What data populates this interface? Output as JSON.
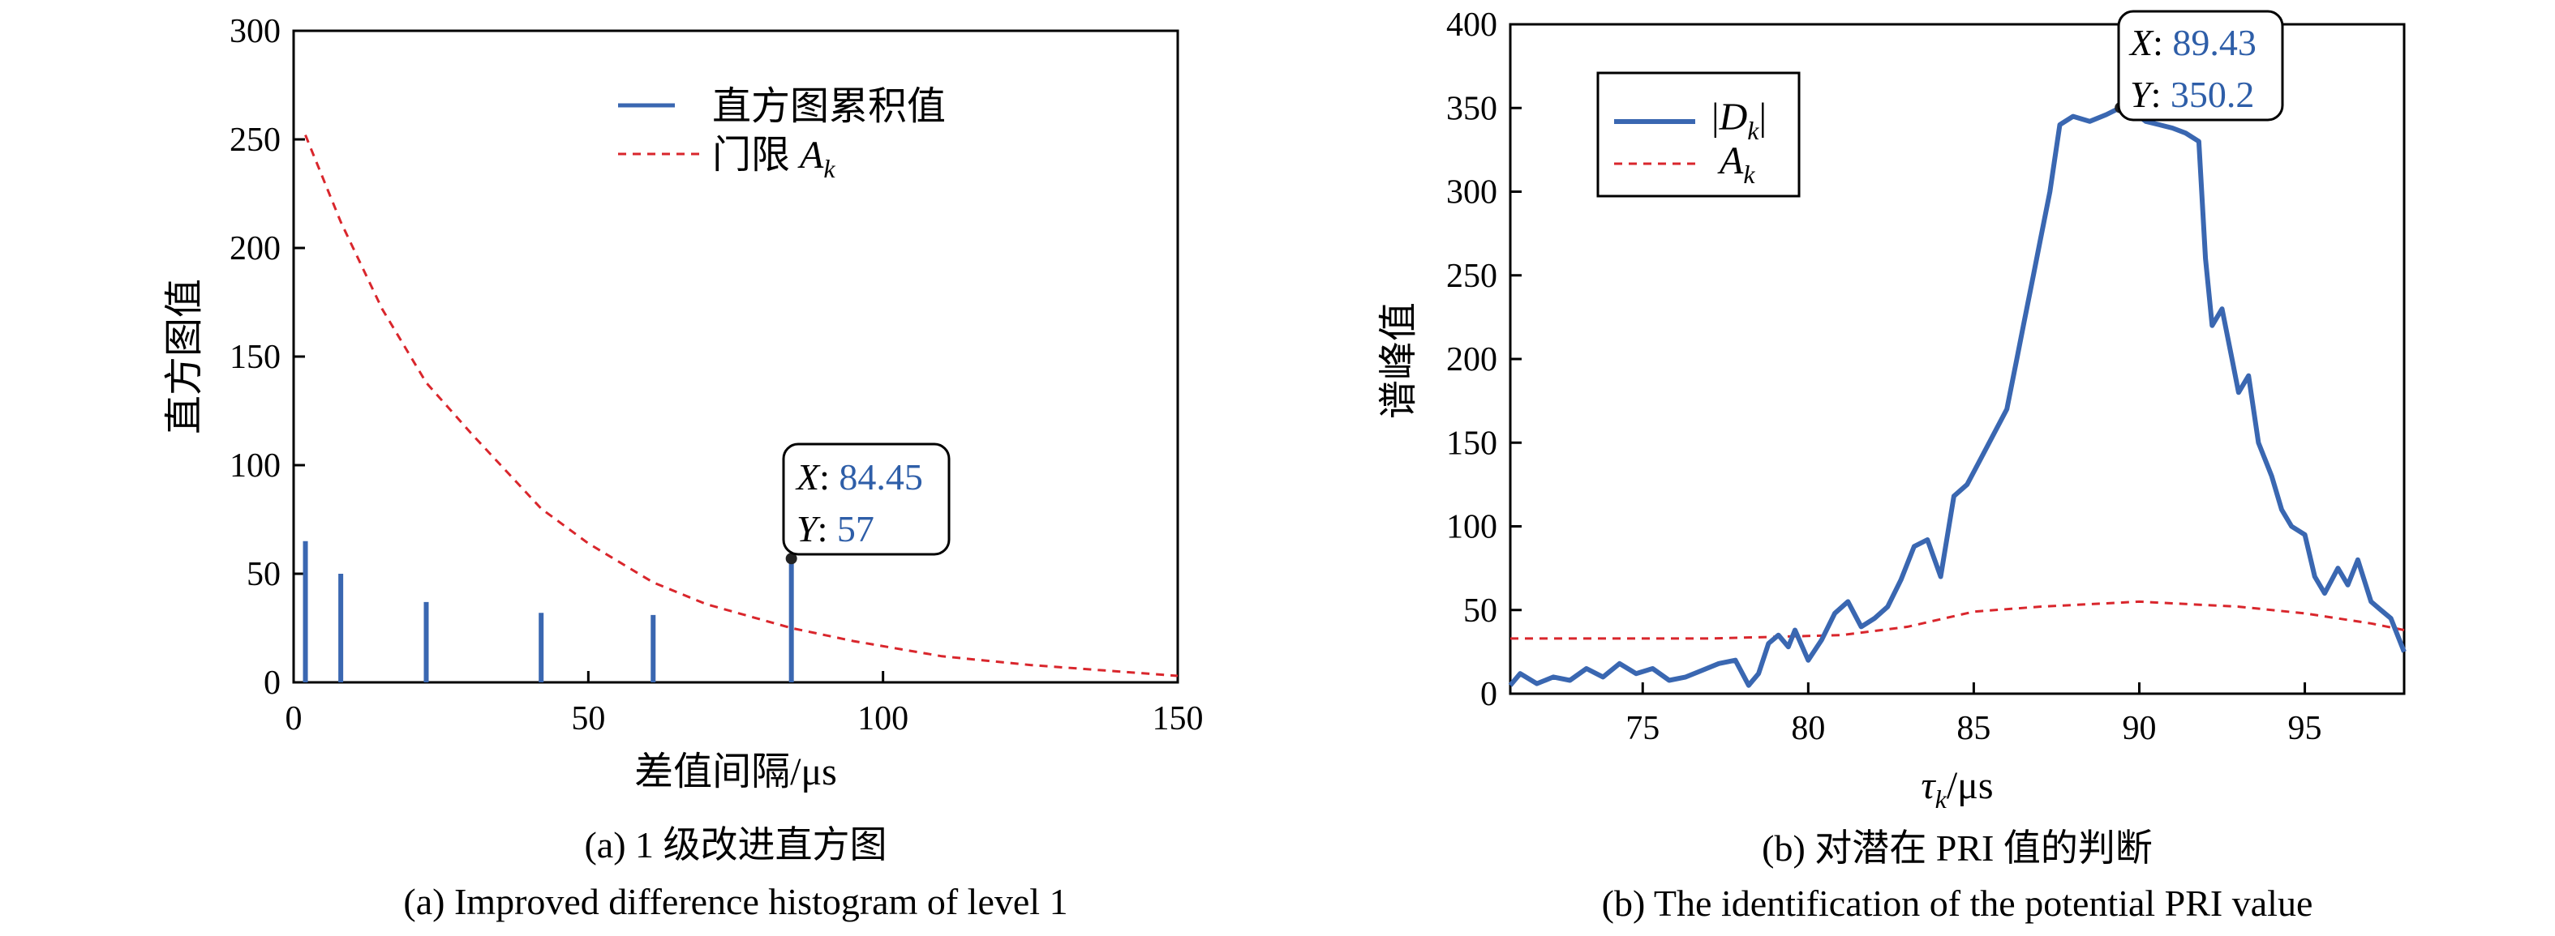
{
  "chart_data": [
    {
      "type": "bar",
      "xlabel": "差值间隔/μs",
      "ylabel": "直方图值",
      "xlim": [
        0,
        150
      ],
      "ylim": [
        0,
        300
      ],
      "xticks": [
        "0",
        "50",
        "100",
        "150"
      ],
      "yticks": [
        "0",
        "50",
        "100",
        "150",
        "200",
        "250",
        "300"
      ],
      "series": [
        {
          "name": "直方图累积值",
          "kind": "stem",
          "x": [
            2,
            8,
            22.5,
            42,
            61,
            84.45
          ],
          "values": [
            65,
            50,
            37,
            32,
            31,
            57
          ]
        },
        {
          "name_main": "门限 ",
          "name_sym": "A",
          "name_sub": "k",
          "kind": "dashed-line",
          "x": [
            2,
            8,
            15,
            22.5,
            30,
            42,
            50,
            61,
            70,
            84.45,
            95,
            110,
            125,
            140,
            150
          ],
          "values": [
            252,
            212,
            172,
            138,
            115,
            80,
            64,
            46,
            36,
            25,
            19,
            12,
            8,
            5,
            3
          ]
        }
      ],
      "datatip": {
        "x_label": "X",
        "x_value": "84.45",
        "y_label": "Y",
        "y_value": "57",
        "x": 84.45,
        "y": 57
      },
      "legend": "top-right",
      "caption_cn": "(a) 1 级改进直方图",
      "caption_en": "(a) Improved difference histogram of level 1"
    },
    {
      "type": "line",
      "xlabel_sym": "τ",
      "xlabel_sub": "k",
      "xlabel_unit": "/μs",
      "ylabel": "谱峰值",
      "xlim": [
        71,
        98
      ],
      "ylim": [
        0,
        400
      ],
      "xticks": [
        "75",
        "80",
        "85",
        "90",
        "95"
      ],
      "yticks": [
        "0",
        "50",
        "100",
        "150",
        "200",
        "250",
        "300",
        "350",
        "400"
      ],
      "series": [
        {
          "name_pre": "|",
          "name_sym": "D",
          "name_sub": "k",
          "name_post": "|",
          "kind": "solid-line",
          "x": [
            71,
            71.3,
            71.8,
            72.3,
            72.8,
            73.3,
            73.8,
            74.3,
            74.8,
            75.3,
            75.8,
            76.3,
            76.8,
            77.3,
            77.8,
            78.2,
            78.5,
            78.8,
            79.1,
            79.4,
            79.6,
            80,
            80.4,
            80.8,
            81.2,
            81.6,
            82,
            82.4,
            82.8,
            83.2,
            83.6,
            84,
            84.4,
            84.8,
            85.2,
            85.6,
            86,
            86.3,
            86.5,
            86.8,
            87,
            87.3,
            87.6,
            88,
            88.5,
            89,
            89.43,
            89.8,
            90.2,
            90.6,
            91,
            91.4,
            91.8,
            92,
            92.2,
            92.5,
            92.8,
            93,
            93.3,
            93.6,
            94,
            94.3,
            94.6,
            95,
            95.3,
            95.6,
            96,
            96.3,
            96.6,
            97,
            97.3,
            97.6,
            98
          ],
          "values": [
            5,
            12,
            6,
            10,
            8,
            15,
            10,
            18,
            12,
            15,
            8,
            10,
            14,
            18,
            20,
            5,
            12,
            30,
            35,
            28,
            38,
            20,
            32,
            48,
            55,
            40,
            45,
            52,
            68,
            88,
            92,
            70,
            118,
            125,
            140,
            155,
            170,
            200,
            220,
            250,
            270,
            300,
            340,
            345,
            342,
            346,
            350.2,
            348,
            342,
            340,
            338,
            335,
            330,
            260,
            220,
            230,
            200,
            180,
            190,
            150,
            130,
            110,
            100,
            95,
            70,
            60,
            75,
            65,
            80,
            55,
            50,
            45,
            25
          ]
        },
        {
          "name_sym": "A",
          "name_sub": "k",
          "kind": "dashed-line",
          "x": [
            71,
            73,
            75,
            77,
            79,
            81,
            83,
            85,
            87,
            89,
            90,
            91,
            93,
            95,
            97,
            98
          ],
          "values": [
            33,
            33,
            33,
            33,
            34,
            35,
            40,
            49,
            52,
            54,
            55,
            54,
            52,
            48,
            42,
            38
          ]
        }
      ],
      "datatip": {
        "x_label": "X",
        "x_value": "89.43",
        "y_label": "Y",
        "y_value": "350.2",
        "x": 89.43,
        "y": 350.2
      },
      "legend": "top-left",
      "caption_cn": "(b) 对潜在 PRI 值的判断",
      "caption_en": "(b) The identification of the potential PRI value"
    }
  ],
  "colors": {
    "series_blue": "#3a67b1",
    "threshold_red": "#d9262c",
    "tip_value": "#2e5ea8",
    "axis": "#000000"
  }
}
